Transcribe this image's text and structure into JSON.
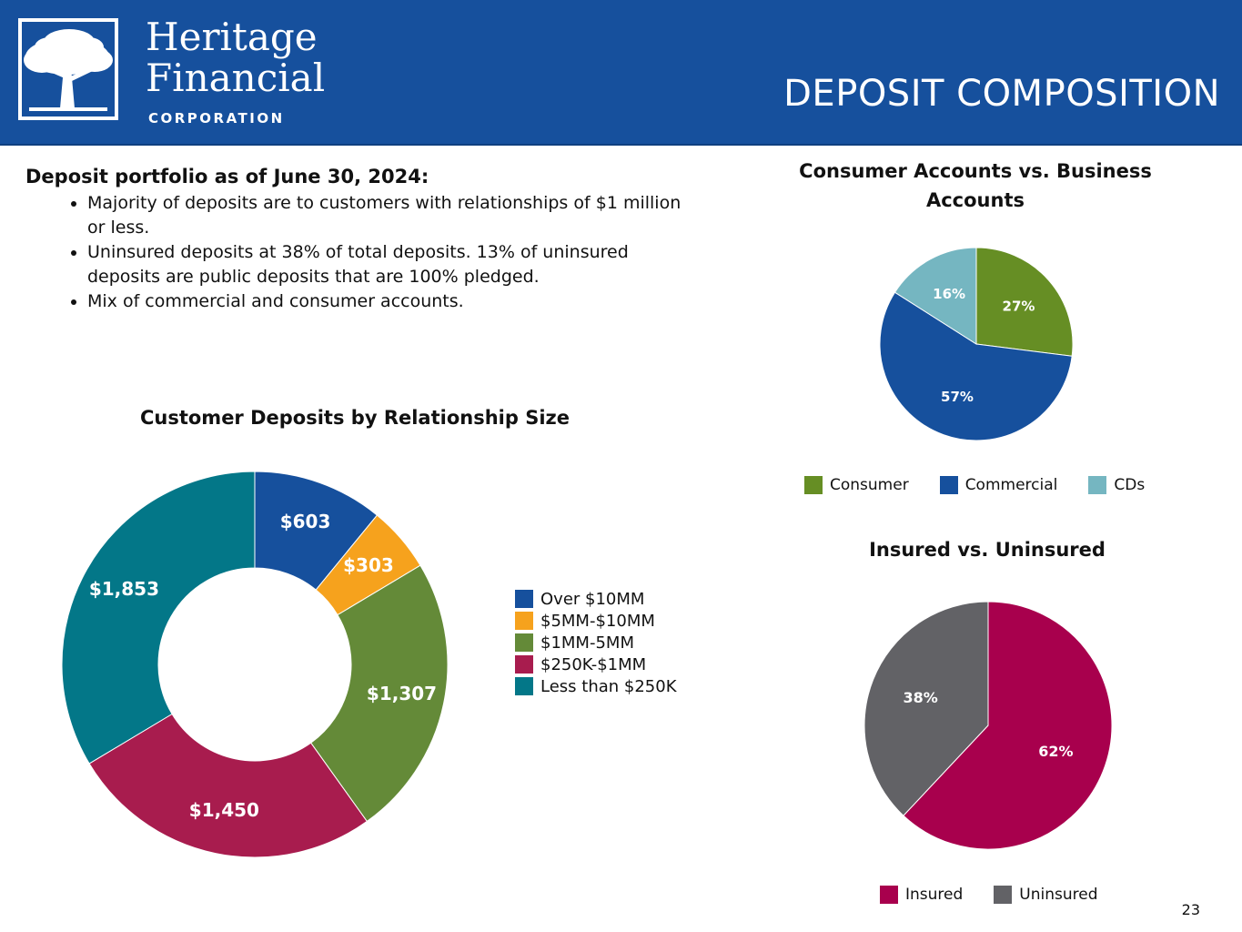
{
  "header": {
    "brand_line1": "Heritage",
    "brand_line2": "Financial",
    "brand_sub": "CORPORATION",
    "title": "DEPOSIT COMPOSITION",
    "bg_color": "#16509d"
  },
  "intro": {
    "heading": "Deposit portfolio as of June 30, 2024:",
    "bullets": [
      "Majority of deposits are to customers with relationships of $1 million or less.",
      "Uninsured deposits at 38% of total deposits. 13% of uninsured deposits are public deposits that are 100% pledged.",
      "Mix of commercial and consumer accounts."
    ]
  },
  "chart_data": [
    {
      "type": "pie",
      "variant": "donut",
      "title": "Customer Deposits by Relationship Size",
      "categories": [
        "Over $10MM",
        "$5MM-$10MM",
        "$1MM-5MM",
        "$250K-$1MM",
        "Less than $250K"
      ],
      "values": [
        603,
        303,
        1307,
        1450,
        1853
      ],
      "data_labels": [
        "$603",
        "$303",
        "$1,307",
        "$1,450",
        "$1,853"
      ],
      "colors": [
        "#16509d",
        "#f6a21d",
        "#648a38",
        "#a81c4e",
        "#037788"
      ],
      "label_colors": [
        "#ffffff",
        "#ffffff",
        "#ffffff",
        "#ffffff",
        "#ffffff"
      ],
      "legend_position": "right"
    },
    {
      "type": "pie",
      "title": "Consumer Accounts vs. Business Accounts",
      "categories": [
        "Consumer",
        "Commercial",
        "CDs"
      ],
      "values": [
        27,
        57,
        16
      ],
      "data_labels": [
        "27%",
        "57%",
        "16%"
      ],
      "colors": [
        "#668e24",
        "#16509d",
        "#75b6c1"
      ],
      "legend_position": "bottom"
    },
    {
      "type": "pie",
      "title": "Insured vs. Uninsured",
      "categories": [
        "Insured",
        "Uninsured"
      ],
      "values": [
        62,
        38
      ],
      "data_labels": [
        "62%",
        "38%"
      ],
      "colors": [
        "#a8004d",
        "#626266"
      ],
      "legend_position": "bottom"
    }
  ],
  "page_number": "23"
}
